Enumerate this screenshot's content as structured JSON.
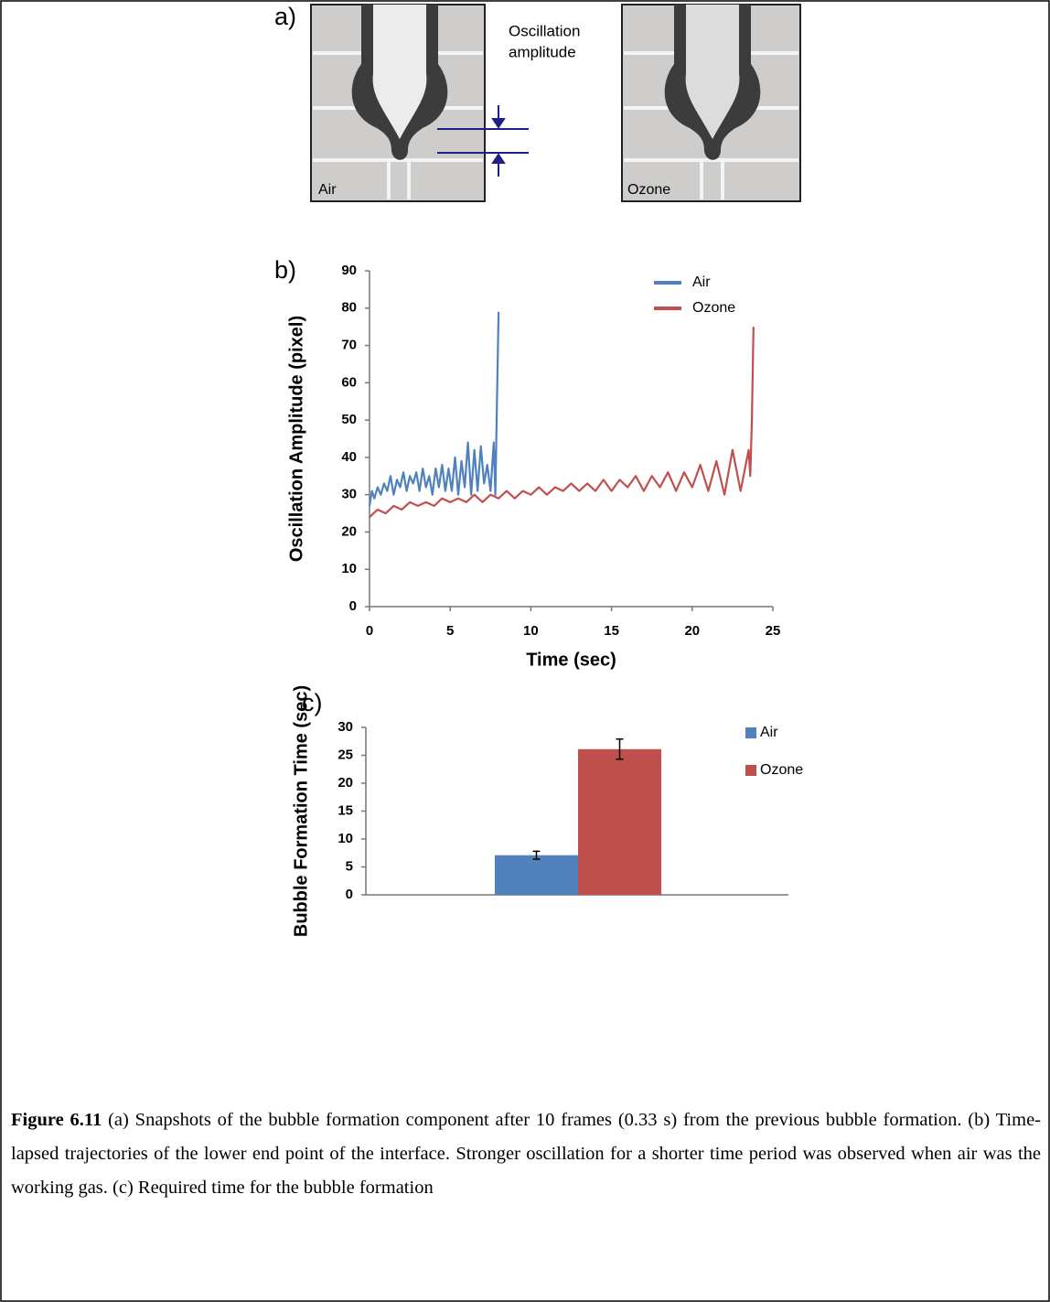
{
  "figure_a": {
    "label": "a)",
    "annotation": [
      "Oscillation",
      "amplitude"
    ],
    "snapshots": [
      "Air",
      "Ozone"
    ]
  },
  "chart_data": [
    {
      "type": "line",
      "label": "b)",
      "x_label": "Time (sec)",
      "y_label": "Oscillation Amplitude (pixel)",
      "xlim": [
        0,
        25
      ],
      "xticks": [
        0,
        5,
        10,
        15,
        20,
        25
      ],
      "ylim": [
        0,
        90
      ],
      "yticks": [
        0,
        10,
        20,
        30,
        40,
        50,
        60,
        70,
        80,
        90
      ],
      "legend": "upper right",
      "series": [
        {
          "name": "Air",
          "color": "#4f81bd",
          "x": [
            0,
            0.15,
            0.3,
            0.5,
            0.7,
            0.9,
            1.1,
            1.3,
            1.5,
            1.7,
            1.9,
            2.1,
            2.3,
            2.5,
            2.7,
            2.9,
            3.1,
            3.3,
            3.5,
            3.7,
            3.9,
            4.1,
            4.3,
            4.5,
            4.7,
            4.9,
            5.1,
            5.3,
            5.5,
            5.7,
            5.9,
            6.1,
            6.3,
            6.5,
            6.7,
            6.9,
            7.1,
            7.3,
            7.5,
            7.7,
            7.8,
            7.9,
            8.0
          ],
          "values": [
            27,
            31,
            29,
            32,
            30,
            33,
            31,
            35,
            30,
            34,
            32,
            36,
            31,
            35,
            33,
            36,
            31,
            37,
            32,
            35,
            30,
            37,
            32,
            38,
            31,
            37,
            31,
            40,
            30,
            39,
            32,
            44,
            30,
            42,
            31,
            43,
            33,
            38,
            31,
            44,
            30,
            55,
            79
          ]
        },
        {
          "name": "Ozone",
          "color": "#c0504d",
          "x": [
            0,
            0.5,
            1,
            1.5,
            2,
            2.5,
            3,
            3.5,
            4,
            4.5,
            5,
            5.5,
            6,
            6.5,
            7,
            7.5,
            8,
            8.5,
            9,
            9.5,
            10,
            10.5,
            11,
            11.5,
            12,
            12.5,
            13,
            13.5,
            14,
            14.5,
            15,
            15.5,
            16,
            16.5,
            17,
            17.5,
            18,
            18.5,
            19,
            19.5,
            20,
            20.5,
            21,
            21.5,
            22,
            22.5,
            23,
            23.5,
            23.6,
            23.7,
            23.8
          ],
          "values": [
            24,
            26,
            25,
            27,
            26,
            28,
            27,
            28,
            27,
            29,
            28,
            29,
            28,
            30,
            28,
            30,
            29,
            31,
            29,
            31,
            30,
            32,
            30,
            32,
            31,
            33,
            31,
            33,
            31,
            34,
            31,
            34,
            32,
            35,
            31,
            35,
            32,
            36,
            31,
            36,
            32,
            38,
            31,
            39,
            30,
            42,
            31,
            42,
            35,
            50,
            75
          ]
        }
      ]
    },
    {
      "type": "bar",
      "label": "c)",
      "y_label": "Bubble Formation Time (sec)",
      "categories": [
        null
      ],
      "ylim": [
        0,
        30
      ],
      "yticks": [
        0,
        5,
        10,
        15,
        20,
        25,
        30
      ],
      "legend": "upper right",
      "series": [
        {
          "name": "Air",
          "color": "#4f81bd",
          "values": [
            7.1
          ],
          "errors": [
            0.7
          ]
        },
        {
          "name": "Ozone",
          "color": "#c0504d",
          "values": [
            26.1
          ],
          "errors": [
            1.8
          ]
        }
      ]
    }
  ],
  "caption": {
    "label": "Figure 6.11",
    "text": "(a) Snapshots of the bubble formation component after 10 frames (0.33 s) from the previous bubble formation. (b) Time-lapsed trajectories of the lower end point of the interface. Stronger oscillation for a shorter time period was observed when air was the working gas. (c) Required time for the bubble formation"
  }
}
